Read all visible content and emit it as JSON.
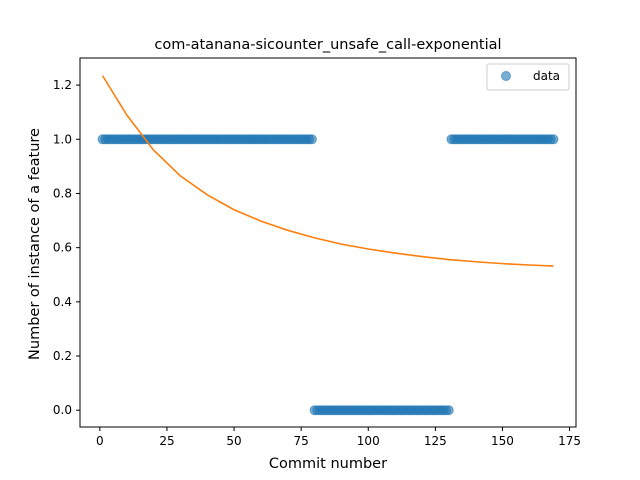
{
  "chart_data": {
    "type": "scatter",
    "title": "com-atanana-sicounter_unsafe_call-exponential",
    "xlabel": "Commit number",
    "ylabel": "Number of instance of a feature",
    "xlim": [
      -7.4,
      177.4
    ],
    "ylim": [
      -0.062,
      1.3
    ],
    "xticks": [
      0,
      25,
      50,
      75,
      100,
      125,
      150,
      175
    ],
    "yticks": [
      0.0,
      0.2,
      0.4,
      0.6,
      0.8,
      1.0,
      1.2
    ],
    "grid": false,
    "legend": {
      "position": "top-right",
      "entries": [
        "data"
      ]
    },
    "colors": {
      "data": "#1f77b4",
      "fit": "#ff7f0e"
    },
    "series": [
      {
        "name": "data",
        "kind": "scatter",
        "segments": [
          {
            "x_start": 1,
            "x_end": 79,
            "y": 1
          },
          {
            "x_start": 80,
            "x_end": 130,
            "y": 0
          },
          {
            "x_start": 131,
            "x_end": 169,
            "y": 1
          }
        ]
      },
      {
        "kind": "line",
        "x": [
          1,
          10,
          20,
          30,
          40,
          50,
          60,
          70,
          80,
          90,
          100,
          110,
          120,
          130,
          140,
          150,
          160,
          169
        ],
        "y": [
          1.235,
          1.09,
          0.96,
          0.865,
          0.795,
          0.74,
          0.698,
          0.664,
          0.636,
          0.613,
          0.595,
          0.58,
          0.567,
          0.556,
          0.548,
          0.541,
          0.536,
          0.532
        ]
      }
    ]
  }
}
